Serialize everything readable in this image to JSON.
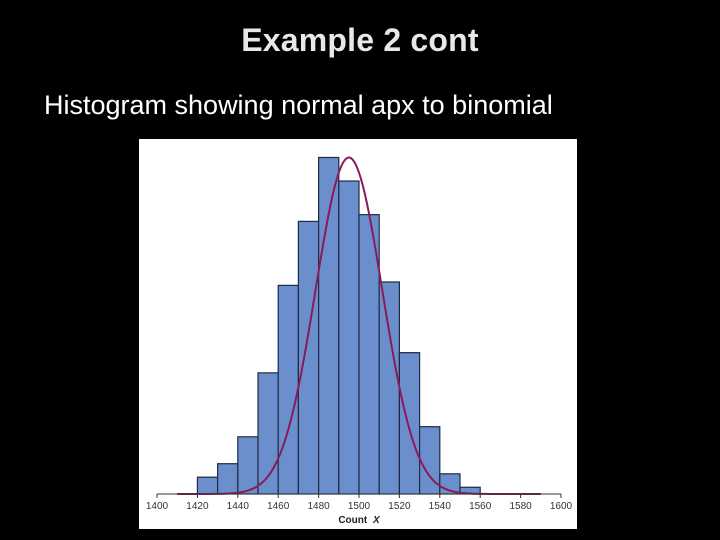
{
  "slide": {
    "title": "Example 2 cont",
    "subtitle": "Histogram showing normal apx to binomial"
  },
  "colors": {
    "bar_fill": "#6b8fcc",
    "bar_stroke": "#1f2a44",
    "curve": "#8b1a5a",
    "background": "#000000",
    "panel": "#ffffff"
  },
  "chart_data": {
    "type": "bar",
    "xlabel_main": "Count",
    "xlabel_var": "X",
    "xlim": [
      1400,
      1600
    ],
    "xticks": [
      1400,
      1420,
      1440,
      1460,
      1480,
      1500,
      1520,
      1540,
      1560,
      1580,
      1600
    ],
    "bin_width": 10,
    "bins": [
      {
        "x": 1420,
        "value": 5
      },
      {
        "x": 1430,
        "value": 9
      },
      {
        "x": 1440,
        "value": 17
      },
      {
        "x": 1450,
        "value": 36
      },
      {
        "x": 1460,
        "value": 62
      },
      {
        "x": 1470,
        "value": 81
      },
      {
        "x": 1480,
        "value": 100
      },
      {
        "x": 1490,
        "value": 93
      },
      {
        "x": 1500,
        "value": 83
      },
      {
        "x": 1510,
        "value": 63
      },
      {
        "x": 1520,
        "value": 42
      },
      {
        "x": 1530,
        "value": 20
      },
      {
        "x": 1540,
        "value": 6
      },
      {
        "x": 1550,
        "value": 2
      },
      {
        "x": 1560,
        "value": 0
      }
    ],
    "ylim": [
      0,
      104
    ],
    "normal_curve": {
      "mean": 1495,
      "sd": 16.5,
      "peak": 100
    },
    "grid": false,
    "legend": "none"
  }
}
